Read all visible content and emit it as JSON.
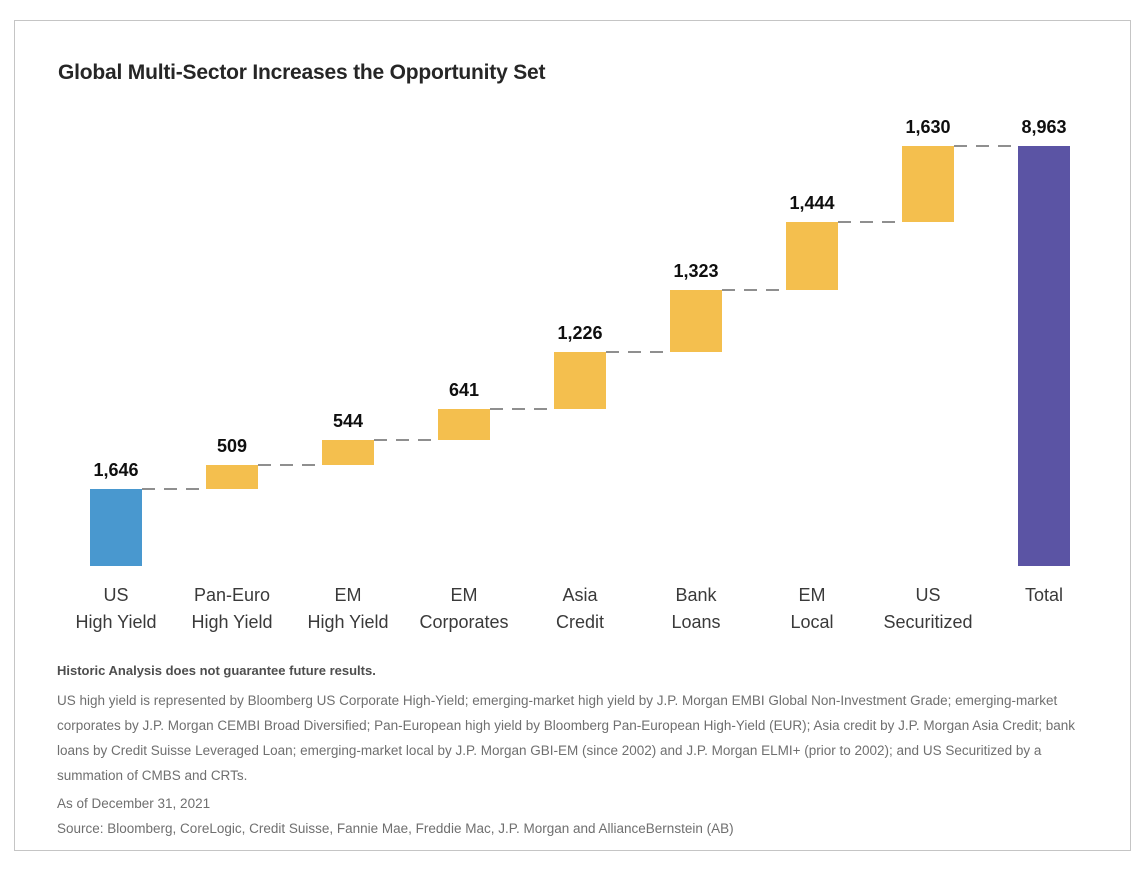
{
  "card": {
    "title": "Global Multi-Sector Increases the Opportunity Set"
  },
  "chart_data": {
    "type": "bar",
    "subtype": "waterfall",
    "title": "Global Multi-Sector Increases the Opportunity Set",
    "categories": [
      "US\nHigh Yield",
      "Pan-Euro\nHigh Yield",
      "EM\nHigh Yield",
      "EM\nCorporates",
      "Asia\nCredit",
      "Bank\nLoans",
      "EM\nLocal",
      "US\nSecuritized",
      "Total"
    ],
    "values": [
      1646,
      509,
      544,
      641,
      1226,
      1323,
      1444,
      1630,
      8963
    ],
    "value_labels": [
      "1,646",
      "509",
      "544",
      "641",
      "1,226",
      "1,323",
      "1,444",
      "1,630",
      "8,963"
    ],
    "bar_roles": [
      "start",
      "increase",
      "increase",
      "increase",
      "increase",
      "increase",
      "increase",
      "increase",
      "total"
    ],
    "colors": {
      "start": "#4998CF",
      "increase": "#F4BF4E",
      "total": "#5B54A4",
      "connector": "#8F8F8F"
    },
    "ylim": [
      0,
      8963
    ],
    "grid": false,
    "legend": false,
    "xlabel": "",
    "ylabel": "",
    "connector_style": "dashed"
  },
  "footnotes": {
    "disclaimer": "Historic Analysis does not guarantee future results.",
    "body": "US high yield is represented by Bloomberg US Corporate High-Yield; emerging-market high yield by J.P. Morgan EMBI Global Non-Investment Grade; emerging-market corporates by J.P. Morgan CEMBI Broad Diversified; Pan-European high yield by Bloomberg Pan-European High-Yield (EUR); Asia credit by J.P. Morgan Asia Credit; bank loans by Credit Suisse Leveraged Loan; emerging-market local by J.P. Morgan GBI-EM (since 2002) and J.P. Morgan ELMI+ (prior to 2002); and US Securitized by a summation of CMBS and CRTs.",
    "as_of": "As of December 31, 2021",
    "source": "Source: Bloomberg, CoreLogic, Credit Suisse, Fannie Mae, Freddie Mac, J.P. Morgan and AllianceBernstein (AB)"
  }
}
